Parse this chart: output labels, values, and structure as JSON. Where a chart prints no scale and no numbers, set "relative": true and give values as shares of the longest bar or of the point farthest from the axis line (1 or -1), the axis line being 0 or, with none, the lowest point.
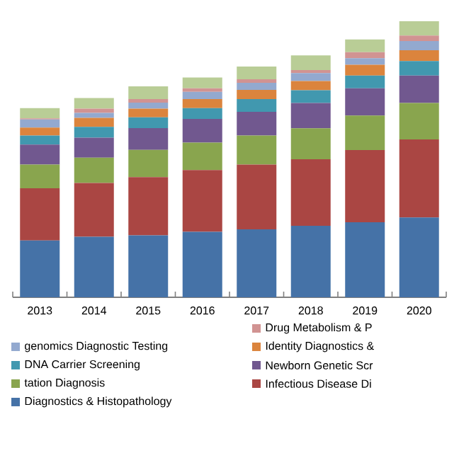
{
  "chart_data": {
    "type": "bar",
    "stacked": true,
    "relative": true,
    "legend": "bottom",
    "categories": [
      "2013",
      "2014",
      "2015",
      "2016",
      "2017",
      "2018",
      "2019",
      "2020"
    ],
    "series": [
      {
        "name": "Diagnostics & Histopathology",
        "color": "#4572a7",
        "values": [
          0.206,
          0.219,
          0.224,
          0.237,
          0.246,
          0.259,
          0.272,
          0.289
        ]
      },
      {
        "name": "Infectious Disease Di",
        "color": "#aa4643",
        "values": [
          0.189,
          0.195,
          0.211,
          0.224,
          0.235,
          0.241,
          0.261,
          0.283
        ]
      },
      {
        "name": "tation Diagnosis",
        "color": "#89a54e",
        "values": [
          0.086,
          0.092,
          0.099,
          0.099,
          0.105,
          0.112,
          0.125,
          0.132
        ]
      },
      {
        "name": "Newborn Genetic Scr",
        "color": "#71588f",
        "values": [
          0.072,
          0.072,
          0.079,
          0.086,
          0.086,
          0.092,
          0.099,
          0.099
        ]
      },
      {
        "name": "DNA Carrier  Screening",
        "color": "#4198af",
        "values": [
          0.033,
          0.039,
          0.039,
          0.039,
          0.046,
          0.046,
          0.046,
          0.053
        ]
      },
      {
        "name": "Identity Diagnostics &",
        "color": "#db843d",
        "values": [
          0.029,
          0.033,
          0.031,
          0.033,
          0.033,
          0.033,
          0.039,
          0.039
        ]
      },
      {
        "name": "genomics Diagnostic Testing",
        "color": "#93a9cf",
        "values": [
          0.029,
          0.018,
          0.022,
          0.026,
          0.026,
          0.029,
          0.024,
          0.033
        ]
      },
      {
        "name": "Drug Metabolism & P",
        "color": "#d19392",
        "values": [
          0.004,
          0.015,
          0.013,
          0.013,
          0.013,
          0.011,
          0.022,
          0.02
        ]
      },
      {
        "color": "#b9cd96",
        "values": [
          0.037,
          0.039,
          0.046,
          0.039,
          0.046,
          0.053,
          0.046,
          0.052
        ]
      }
    ]
  }
}
